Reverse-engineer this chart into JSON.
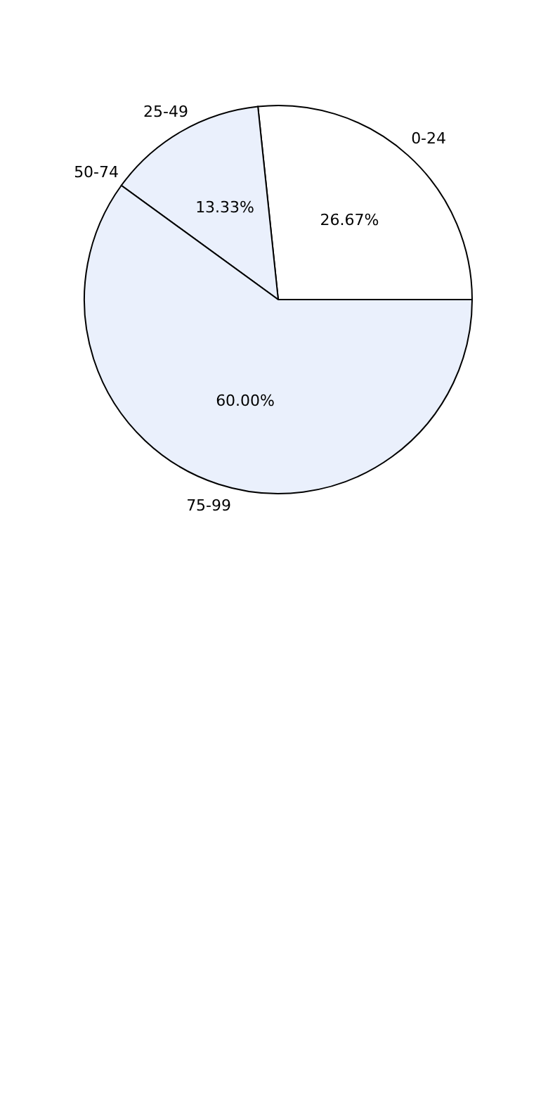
{
  "chart_data": {
    "type": "pie",
    "categories": [
      "0-24",
      "25-49",
      "50-74",
      "75-99"
    ],
    "values": [
      26.67,
      13.33,
      0,
      60
    ],
    "value_labels": [
      "26.67%",
      "13.33%",
      null,
      "60.00%"
    ],
    "colors": [
      "#ffffff",
      "#eaf0fc",
      "#ffffff",
      "#eaf0fc"
    ]
  }
}
